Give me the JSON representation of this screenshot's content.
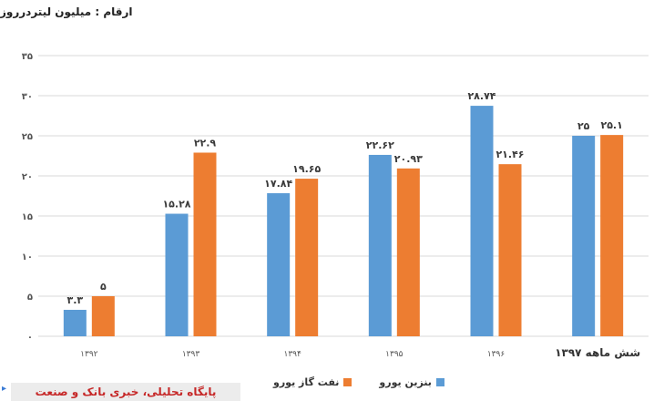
{
  "unit_note": "ارقام : میلیون لیتردرروز",
  "source": "پایگاه تحلیلی، خبری بانک و صنعت",
  "colors": {
    "series1": "#5b9bd5",
    "series2": "#ed7d31",
    "grid": "#d9d9d9",
    "axis_text": "#555555",
    "label_text": "#3a3a3a"
  },
  "chart_data": {
    "type": "bar",
    "categories": [
      "۱۳۹۲",
      "۱۳۹۳",
      "۱۳۹۴",
      "۱۳۹۵",
      "۱۳۹۶",
      "شش ماهه ۱۳۹۷"
    ],
    "series": [
      {
        "name": "بنزین یورو",
        "values": [
          3.3,
          15.28,
          17.84,
          22.62,
          28.74,
          25
        ],
        "labels": [
          "۳.۳",
          "۱۵.۲۸",
          "۱۷.۸۴",
          "۲۲.۶۲",
          "۲۸.۷۴",
          "۲۵"
        ]
      },
      {
        "name": "نفت گاز یورو",
        "values": [
          5,
          22.9,
          19.65,
          20.93,
          21.46,
          25.1
        ],
        "labels": [
          "۵",
          "۲۲.۹",
          "۱۹.۶۵",
          "۲۰.۹۳",
          "۲۱.۴۶",
          "۲۵.۱"
        ]
      }
    ],
    "yticks": [
      0,
      5,
      10,
      15,
      20,
      25,
      30,
      35
    ],
    "ytick_labels": [
      "۰",
      "۵",
      "۱۰",
      "۱۵",
      "۲۰",
      "۲۵",
      "۳۰",
      "۳۵"
    ],
    "ylim": [
      0,
      35
    ],
    "grid": true,
    "legend_position": "bottom"
  }
}
